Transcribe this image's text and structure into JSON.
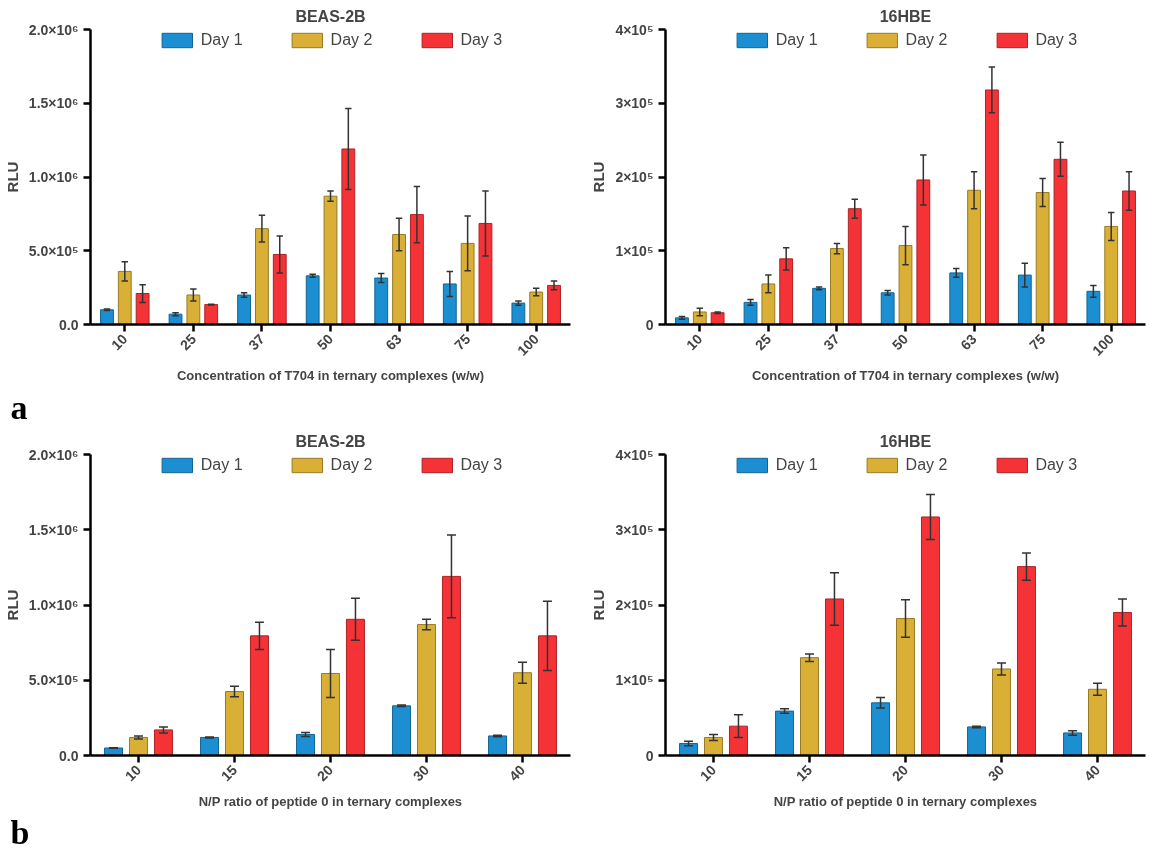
{
  "chart_data": [
    {
      "type": "bar",
      "title": "BEAS-2B",
      "xlabel": "Concentration of T704 in ternary complexes (w/w)",
      "ylabel": "RLU",
      "annotations": [
        "a"
      ],
      "categories": [
        "10",
        "25",
        "37",
        "50",
        "63",
        "75",
        "100"
      ],
      "series": [
        {
          "name": "Day 1",
          "color": "#1b8fd2",
          "values": [
            100000,
            70000,
            200000,
            330000,
            315000,
            275000,
            145000
          ],
          "errors": [
            5000,
            10000,
            15000,
            10000,
            30000,
            85000,
            15000
          ]
        },
        {
          "name": "Day 2",
          "color": "#d9b035",
          "values": [
            360000,
            200000,
            650000,
            870000,
            610000,
            550000,
            220000
          ],
          "errors": [
            65000,
            40000,
            90000,
            35000,
            110000,
            185000,
            25000
          ]
        },
        {
          "name": "Day 3",
          "color": "#f53337",
          "values": [
            210000,
            135000,
            475000,
            1190000,
            745000,
            685000,
            265000
          ],
          "errors": [
            60000,
            3000,
            125000,
            275000,
            190000,
            220000,
            30000
          ]
        }
      ],
      "ylim": [
        0,
        2000000
      ],
      "yticks": [
        {
          "value": 0,
          "label": "0.0"
        },
        {
          "value": 500000,
          "label": "5.0×10⁵"
        },
        {
          "value": 1000000,
          "label": "1.0×10⁶"
        },
        {
          "value": 1500000,
          "label": "1.5×10⁶"
        },
        {
          "value": 2000000,
          "label": "2.0×10⁶"
        }
      ],
      "legend": "top",
      "grid": false
    },
    {
      "type": "bar",
      "title": "16HBE",
      "xlabel": "Concentration of T704 in ternary complexes (w/w)",
      "ylabel": "RLU",
      "categories": [
        "10",
        "25",
        "37",
        "50",
        "63",
        "75",
        "100"
      ],
      "series": [
        {
          "name": "Day 1",
          "color": "#1b8fd2",
          "values": [
            9000,
            30000,
            49000,
            43000,
            70000,
            67000,
            45000
          ],
          "errors": [
            2000,
            4000,
            2000,
            3000,
            6000,
            16000,
            8000
          ]
        },
        {
          "name": "Day 2",
          "color": "#d9b035",
          "values": [
            17000,
            55000,
            103000,
            107000,
            182000,
            179000,
            133000
          ],
          "errors": [
            5000,
            12000,
            7000,
            26000,
            25000,
            19000,
            19000
          ]
        },
        {
          "name": "Day 3",
          "color": "#f53337",
          "values": [
            16000,
            89000,
            157000,
            196000,
            318000,
            224000,
            181000
          ],
          "errors": [
            1000,
            15000,
            13000,
            34000,
            31000,
            23000,
            26000
          ]
        }
      ],
      "ylim": [
        0,
        400000
      ],
      "yticks": [
        0,
        {
          "value": 100000,
          "label": "1×10⁵"
        },
        {
          "value": 200000,
          "label": "2×10⁵"
        },
        {
          "value": 300000,
          "label": "3×10⁵"
        },
        {
          "value": 400000,
          "label": "4×10⁵"
        }
      ],
      "legend": "top",
      "grid": false
    },
    {
      "type": "bar",
      "title": "BEAS-2B",
      "xlabel": "N/P ratio of peptide 0 in ternary complexes",
      "ylabel": "RLU",
      "annotations": [
        "b"
      ],
      "categories": [
        "10",
        "15",
        "20",
        "30",
        "40"
      ],
      "series": [
        {
          "name": "Day 1",
          "color": "#1b8fd2",
          "values": [
            50000,
            120000,
            140000,
            330000,
            130000
          ],
          "errors": [
            2000,
            3000,
            13000,
            5000,
            5000
          ]
        },
        {
          "name": "Day 2",
          "color": "#d9b035",
          "values": [
            120000,
            425000,
            545000,
            870000,
            550000
          ],
          "errors": [
            10000,
            35000,
            160000,
            35000,
            70000
          ]
        },
        {
          "name": "Day 3",
          "color": "#f53337",
          "values": [
            170000,
            795000,
            905000,
            1190000,
            795000
          ],
          "errors": [
            20000,
            90000,
            140000,
            275000,
            230000
          ]
        }
      ],
      "ylim": [
        0,
        2000000
      ],
      "yticks": [
        {
          "value": 0,
          "label": "0.0"
        },
        {
          "value": 500000,
          "label": "5.0×10⁵"
        },
        {
          "value": 1000000,
          "label": "1.0×10⁶"
        },
        {
          "value": 1500000,
          "label": "1.5×10⁶"
        },
        {
          "value": 2000000,
          "label": "2.0×10⁶"
        }
      ],
      "legend": "top",
      "grid": false
    },
    {
      "type": "bar",
      "title": "16HBE",
      "xlabel": "N/P ratio of peptide 0 in ternary complexes",
      "ylabel": "RLU",
      "categories": [
        "10",
        "15",
        "20",
        "30",
        "40"
      ],
      "series": [
        {
          "name": "Day 1",
          "color": "#1b8fd2",
          "values": [
            16000,
            59000,
            70000,
            38000,
            30000
          ],
          "errors": [
            3000,
            3000,
            7000,
            1000,
            3000
          ]
        },
        {
          "name": "Day 2",
          "color": "#d9b035",
          "values": [
            24000,
            130000,
            182000,
            115000,
            88000
          ],
          "errors": [
            4000,
            5000,
            25000,
            8000,
            8000
          ]
        },
        {
          "name": "Day 3",
          "color": "#f53337",
          "values": [
            39000,
            208000,
            317000,
            251000,
            190000
          ],
          "errors": [
            15000,
            35000,
            30000,
            18000,
            18000
          ]
        }
      ],
      "ylim": [
        0,
        400000
      ],
      "yticks": [
        0,
        {
          "value": 100000,
          "label": "1×10⁵"
        },
        {
          "value": 200000,
          "label": "2×10⁵"
        },
        {
          "value": 300000,
          "label": "3×10⁵"
        },
        {
          "value": 400000,
          "label": "4×10⁵"
        }
      ],
      "legend": "top",
      "grid": false
    }
  ]
}
